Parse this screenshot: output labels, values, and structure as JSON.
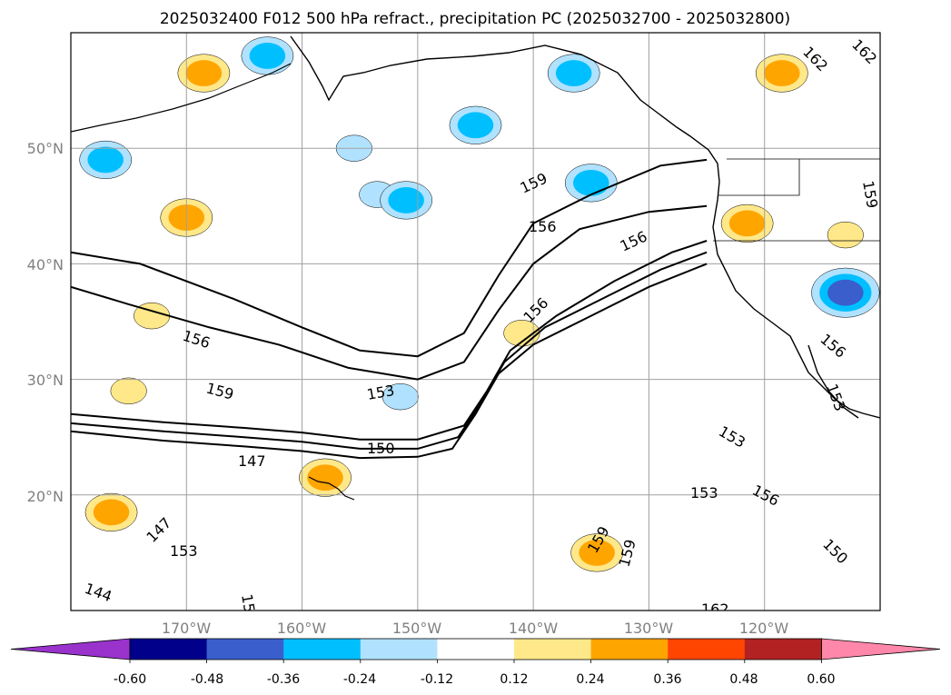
{
  "chart_data": {
    "type": "contour_map",
    "title": "2025032400 F012 500 hPa refract., precipitation PC (2025032700 - 2025032800)",
    "map": {
      "lon_range": [
        -180,
        -110
      ],
      "lat_range": [
        10,
        60
      ],
      "gridlines": true,
      "lat_ticks": [
        {
          "lat": 50,
          "label": "50°N"
        },
        {
          "lat": 40,
          "label": "40°N"
        },
        {
          "lat": 30,
          "label": "30°N"
        },
        {
          "lat": 20,
          "label": "20°N"
        }
      ],
      "lon_ticks": [
        {
          "lon": -170,
          "label": "170°W"
        },
        {
          "lon": -160,
          "label": "160°W"
        },
        {
          "lon": -150,
          "label": "150°W"
        },
        {
          "lon": -140,
          "label": "140°W"
        },
        {
          "lon": -130,
          "label": "130°W"
        },
        {
          "lon": -120,
          "label": "120°W"
        }
      ]
    },
    "contour_lines": [
      {
        "level": 147,
        "points": [
          [
            -180,
            25.5
          ],
          [
            -172,
            24.7
          ],
          [
            -165,
            24.2
          ],
          [
            -160,
            23.8
          ],
          [
            -155,
            23.2
          ],
          [
            -150,
            23.3
          ],
          [
            -147,
            24
          ],
          [
            -145,
            27
          ],
          [
            -143,
            30.5
          ],
          [
            -140,
            33
          ],
          [
            -135,
            35.5
          ],
          [
            -130,
            38
          ],
          [
            -125,
            40
          ]
        ]
      },
      {
        "level": 150,
        "points": [
          [
            -180,
            26.2
          ],
          [
            -172,
            25.5
          ],
          [
            -165,
            25
          ],
          [
            -160,
            24.6
          ],
          [
            -155,
            24
          ],
          [
            -150,
            24
          ],
          [
            -146.5,
            25
          ],
          [
            -144.5,
            28
          ],
          [
            -142.5,
            31.5
          ],
          [
            -139,
            34.5
          ],
          [
            -134,
            37
          ],
          [
            -129,
            39.5
          ],
          [
            -125,
            41
          ]
        ]
      },
      {
        "level": 153,
        "points": [
          [
            -180,
            27
          ],
          [
            -172,
            26.3
          ],
          [
            -165,
            25.8
          ],
          [
            -160,
            25.4
          ],
          [
            -155,
            24.8
          ],
          [
            -150,
            24.8
          ],
          [
            -146,
            26
          ],
          [
            -144,
            29
          ],
          [
            -142,
            32.5
          ],
          [
            -138,
            35.5
          ],
          [
            -133,
            38.5
          ],
          [
            -128,
            41
          ],
          [
            -125,
            42
          ]
        ]
      },
      {
        "level": 156,
        "points": [
          [
            -180,
            38
          ],
          [
            -175,
            36.5
          ],
          [
            -168,
            34.5
          ],
          [
            -162,
            33
          ],
          [
            -156,
            31
          ],
          [
            -150,
            30
          ],
          [
            -146,
            31.5
          ],
          [
            -143,
            36
          ],
          [
            -140,
            40
          ],
          [
            -136,
            43
          ],
          [
            -130,
            44.5
          ],
          [
            -125,
            45
          ]
        ]
      },
      {
        "level": 159,
        "points": [
          [
            -180,
            41
          ],
          [
            -174,
            40
          ],
          [
            -166,
            37
          ],
          [
            -160,
            34.5
          ],
          [
            -155,
            32.5
          ],
          [
            -150,
            32
          ],
          [
            -146,
            34
          ],
          [
            -143,
            39
          ],
          [
            -140,
            43.5
          ],
          [
            -135,
            46
          ],
          [
            -129,
            48.5
          ],
          [
            -125,
            49
          ]
        ]
      }
    ],
    "contour_labels": [
      "144",
      "147",
      "147",
      "150",
      "150",
      "153",
      "153",
      "153",
      "153",
      "153",
      "156",
      "156",
      "156",
      "156",
      "156",
      "159",
      "159",
      "159",
      "159",
      "159",
      "162",
      "162",
      "162",
      "15"
    ],
    "shading": {
      "variable": "precipitation PC",
      "colorbar_ticks": [
        "-0.60",
        "-0.48",
        "-0.36",
        "-0.24",
        "-0.12",
        "0.12",
        "0.24",
        "0.36",
        "0.48",
        "0.60"
      ],
      "colors": [
        "#9933cc",
        "#00008b",
        "#3a5fcd",
        "#00bfff",
        "#b0e2ff",
        "#ffffff",
        "#ffe88a",
        "#ffa500",
        "#ff4500",
        "#b22222",
        "#ff88aa"
      ],
      "blobs": [
        {
          "lon": -170,
          "lat": 44,
          "value": 0.38
        },
        {
          "lon": -177,
          "lat": 49,
          "value": -0.36
        },
        {
          "lon": -168.5,
          "lat": 56.5,
          "value": 0.3
        },
        {
          "lon": -163,
          "lat": 58,
          "value": -0.3
        },
        {
          "lon": -145,
          "lat": 52,
          "value": -0.3
        },
        {
          "lon": -155.5,
          "lat": 50,
          "value": -0.26
        },
        {
          "lon": -153.5,
          "lat": 46,
          "value": -0.24
        },
        {
          "lon": -151,
          "lat": 45.5,
          "value": -0.3
        },
        {
          "lon": -136.5,
          "lat": 56.5,
          "value": -0.38
        },
        {
          "lon": -135,
          "lat": 47,
          "value": -0.3
        },
        {
          "lon": -173,
          "lat": 35.5,
          "value": 0.26
        },
        {
          "lon": -175,
          "lat": 29,
          "value": 0.28
        },
        {
          "lon": -176.5,
          "lat": 18.5,
          "value": 0.4
        },
        {
          "lon": -158,
          "lat": 21.5,
          "value": 0.3
        },
        {
          "lon": -151.5,
          "lat": 28.5,
          "value": -0.22
        },
        {
          "lon": -141,
          "lat": 34,
          "value": 0.26
        },
        {
          "lon": -134.5,
          "lat": 15,
          "value": 0.3
        },
        {
          "lon": -113,
          "lat": 37.5,
          "value": -0.5
        },
        {
          "lon": -121.5,
          "lat": 43.5,
          "value": 0.32
        },
        {
          "lon": -118.5,
          "lat": 56.5,
          "value": 0.3
        },
        {
          "lon": -113,
          "lat": 42.5,
          "value": 0.26
        }
      ]
    }
  }
}
